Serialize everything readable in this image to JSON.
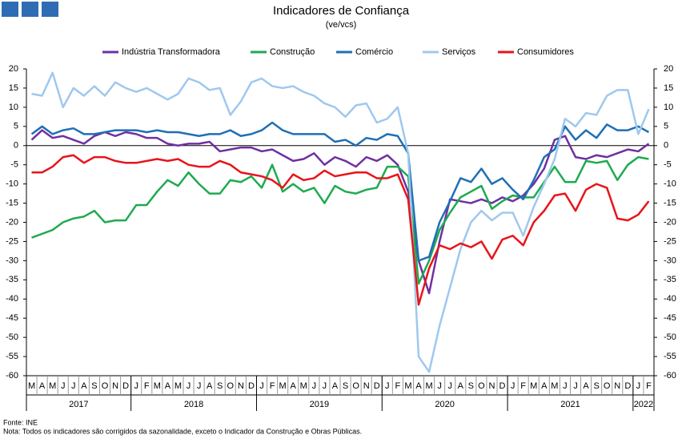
{
  "chart_data": {
    "type": "line",
    "title": "Indicadores de Confiança",
    "subtitle": "(ve/vcs)",
    "categories": [
      "M",
      "A",
      "M",
      "J",
      "J",
      "A",
      "S",
      "O",
      "N",
      "D",
      "J",
      "F",
      "M",
      "A",
      "M",
      "J",
      "J",
      "A",
      "S",
      "O",
      "N",
      "D",
      "J",
      "F",
      "M",
      "A",
      "M",
      "J",
      "J",
      "A",
      "S",
      "O",
      "N",
      "D",
      "J",
      "F",
      "M",
      "A",
      "M",
      "J",
      "J",
      "A",
      "S",
      "O",
      "N",
      "D",
      "J",
      "F",
      "M",
      "A",
      "M",
      "J",
      "J",
      "A",
      "S",
      "O",
      "N",
      "D",
      "J",
      "F"
    ],
    "year_groups": [
      {
        "label": "2017",
        "months": 10
      },
      {
        "label": "2018",
        "months": 12
      },
      {
        "label": "2019",
        "months": 12
      },
      {
        "label": "2020",
        "months": 12
      },
      {
        "label": "2021",
        "months": 12
      },
      {
        "label": "2022",
        "months": 2
      }
    ],
    "series": [
      {
        "name": "Indústria Transformadora",
        "color": "#7030a0",
        "values": [
          1.5,
          4,
          2,
          2.5,
          1.5,
          0.5,
          2.5,
          3.5,
          2.5,
          3.5,
          3,
          2,
          2,
          0.5,
          0,
          0.5,
          0.5,
          1,
          -1.5,
          -1,
          -0.5,
          -0.5,
          -1.5,
          -1,
          -2.5,
          -4,
          -3.5,
          -2,
          -5,
          -3,
          -4,
          -5.5,
          -3,
          -4,
          -2.5,
          -5,
          -12,
          -30,
          -38.5,
          -25,
          -14,
          -14.5,
          -15,
          -14,
          -15,
          -13.5,
          -14.5,
          -13,
          -10,
          -6,
          1.5,
          2.5,
          -3,
          -3.5,
          -2.5,
          -3,
          -2,
          -1,
          -1.5,
          0.5
        ]
      },
      {
        "name": "Construção",
        "color": "#1faa50",
        "values": [
          -24,
          -23,
          -22,
          -20,
          -19,
          -18.5,
          -17,
          -20,
          -19.5,
          -19.5,
          -15.5,
          -15.5,
          -12,
          -9,
          -10.5,
          -7,
          -10,
          -12.5,
          -12.5,
          -9,
          -9.5,
          -8,
          -11,
          -5,
          -12,
          -10,
          -12,
          -11,
          -15,
          -10.5,
          -12,
          -12.5,
          -11.5,
          -11,
          -5.5,
          -5.5,
          -8,
          -36,
          -30,
          -22,
          -17.5,
          -13.5,
          -12,
          -10.5,
          -16.5,
          -14.5,
          -13,
          -13.5,
          -13.5,
          -9.5,
          -5.5,
          -9.5,
          -9.5,
          -4,
          -4.5,
          -4,
          -9,
          -5,
          -3,
          -3.5
        ]
      },
      {
        "name": "Comércio",
        "color": "#1f6fb5",
        "values": [
          3,
          5,
          3,
          4,
          4.5,
          3,
          3,
          3.5,
          4,
          4,
          4,
          3.5,
          4,
          3.5,
          3.5,
          3,
          2.5,
          3,
          3,
          4,
          2.5,
          3,
          4,
          6,
          4,
          3,
          3,
          3,
          3,
          1,
          1.5,
          0,
          2,
          1.5,
          3,
          2.5,
          -2,
          -30,
          -29,
          -20,
          -14.5,
          -8.5,
          -9.5,
          -6,
          -10,
          -8.5,
          -11.5,
          -14,
          -9,
          -3,
          -1,
          5,
          1.5,
          4,
          2,
          5.5,
          4,
          4,
          5,
          3.5
        ]
      },
      {
        "name": "Serviços",
        "color": "#9fc8ee",
        "values": [
          13.5,
          13,
          19,
          10,
          15,
          13,
          15.5,
          13,
          16.5,
          15,
          14,
          15,
          13.5,
          12,
          13.5,
          17.5,
          16.5,
          14.5,
          15,
          8,
          11.5,
          16.5,
          17.5,
          15.5,
          15,
          15.5,
          14,
          13,
          11,
          10,
          7.5,
          10.5,
          11,
          6,
          7,
          10,
          -2,
          -55,
          -59,
          -47,
          -37,
          -27,
          -20,
          -17,
          -19.5,
          -17.5,
          -17.5,
          -23.5,
          -16,
          -10,
          -3.5,
          7,
          5,
          8.5,
          8,
          13,
          14.5,
          14.5,
          3,
          9.5
        ]
      },
      {
        "name": "Consumidores",
        "color": "#e8141b",
        "values": [
          -7,
          -7,
          -5.5,
          -3,
          -2.5,
          -4.5,
          -3,
          -3,
          -4,
          -4.5,
          -4.5,
          -4,
          -3.5,
          -4,
          -3.5,
          -5,
          -5.5,
          -5.5,
          -4,
          -5,
          -7,
          -7.5,
          -8,
          -9,
          -11,
          -7.5,
          -9,
          -8.5,
          -6.5,
          -8,
          -7.5,
          -7,
          -7,
          -8.5,
          -8.5,
          -7.5,
          -14,
          -41.5,
          -32,
          -26,
          -27,
          -25.5,
          -26.5,
          -25,
          -29.5,
          -24.5,
          -23.5,
          -26,
          -20,
          -17,
          -13,
          -12.5,
          -17,
          -11.5,
          -10,
          -11,
          -19,
          -19.5,
          -18,
          -14.5
        ]
      }
    ],
    "ylim": [
      -60,
      20
    ],
    "yticks": [
      -60,
      -55,
      -50,
      -45,
      -40,
      -35,
      -30,
      -25,
      -20,
      -15,
      -10,
      -5,
      0,
      5,
      10,
      15,
      20
    ],
    "y2lim": [
      -60,
      20
    ],
    "y2ticks": [
      -60,
      -55,
      -50,
      -45,
      -40,
      -35,
      -30,
      -25,
      -20,
      -15,
      -10,
      -5,
      0,
      5,
      10,
      15,
      20
    ],
    "source": "Fonte: INE",
    "note": "Nota: Todos os indicadores são corrigidos da sazonalidade, exceto o Indicador da Construção e Obras Públicas."
  }
}
